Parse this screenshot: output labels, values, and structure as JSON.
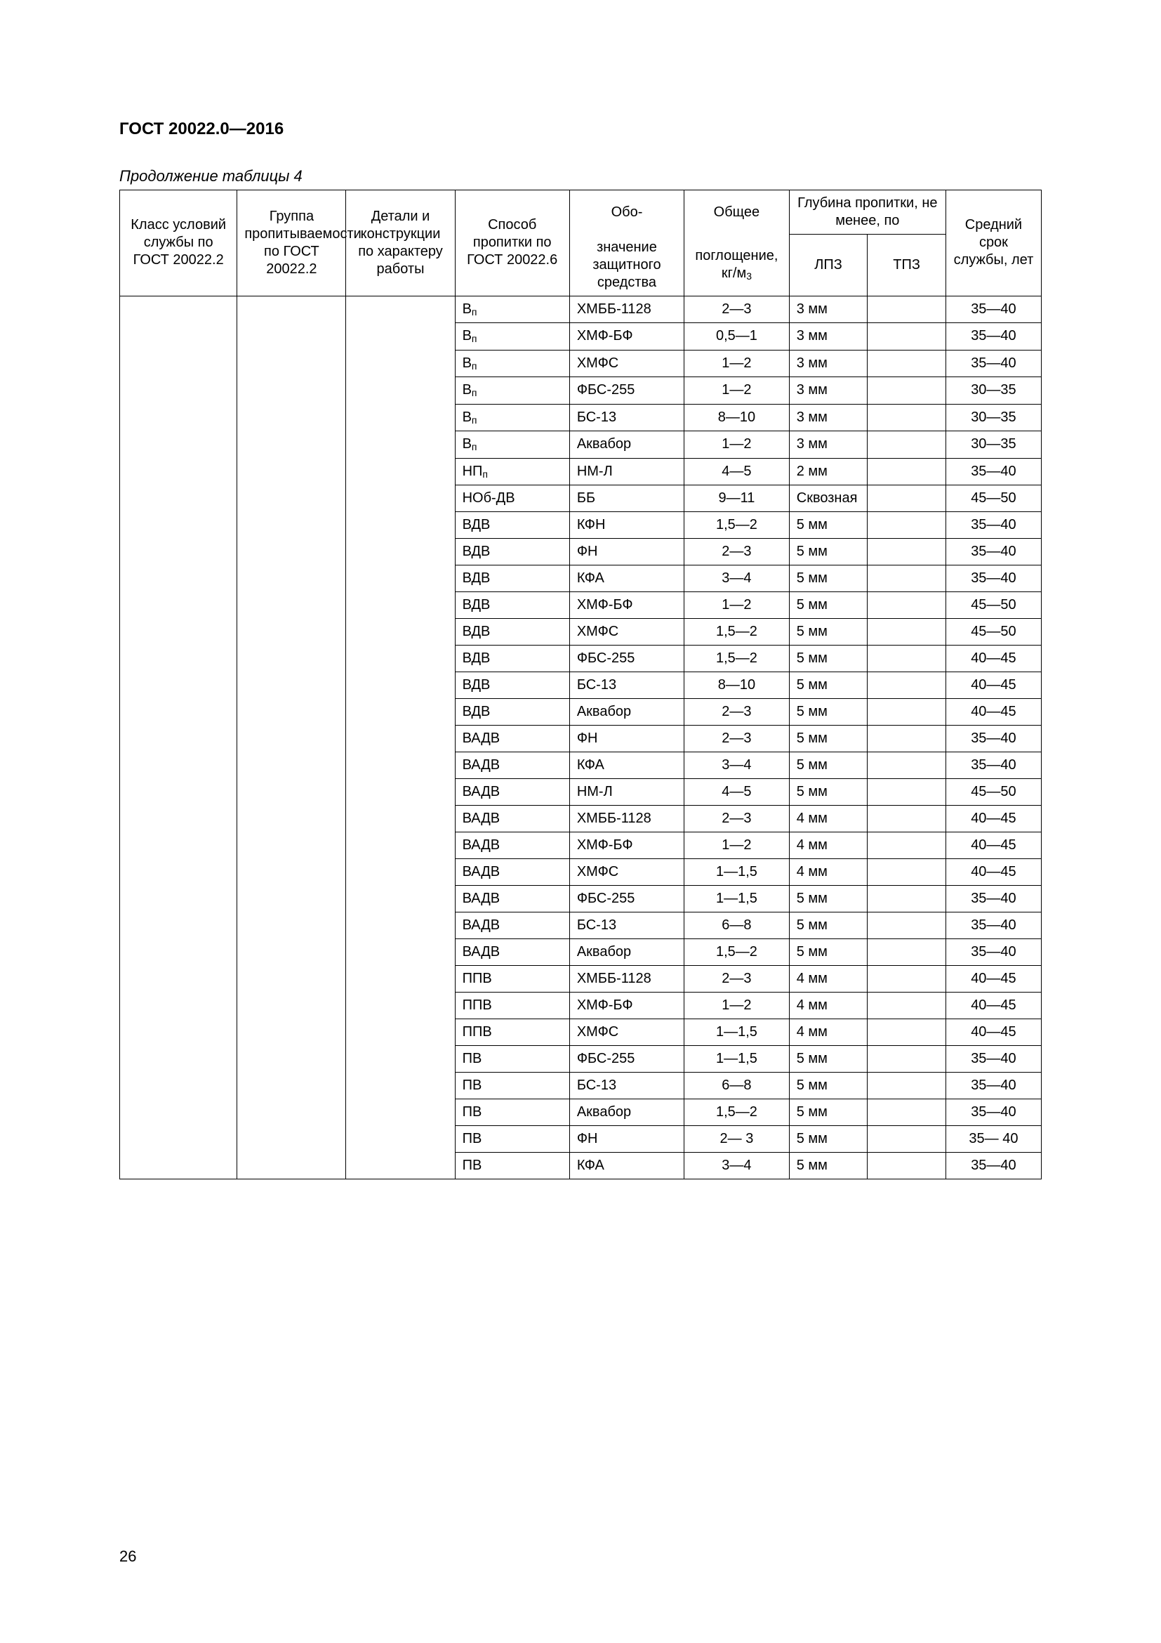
{
  "doc": {
    "title": "ГОСТ 20022.0—2016",
    "page_number": "26"
  },
  "table": {
    "caption": "Продолжение таблицы 4",
    "headers": {
      "c0": "Класс условий службы по ГОСТ 20022.2",
      "c1": "Группа пропитываемости по ГОСТ 20022.2",
      "c2": "Детали и конструкции по характеру работы",
      "c3": "Способ пропитки по ГОСТ 20022.6",
      "c4a": "Обо-",
      "c4b": "значение защитного средства",
      "c5a": "Общее",
      "c5b_html": "поглощение, кг/м<span class='sub'>3</span>",
      "c67": "Глубина пропитки, не менее, по",
      "c6": "ЛПЗ",
      "c7": "ТПЗ",
      "c8": "Средний срок службы, лет"
    },
    "rows": [
      {
        "c3_html": "В<span class='sub'>п</span>",
        "c4": "ХМББ-1128",
        "c5": "2—3",
        "c6": "3 мм",
        "c7": "",
        "c8": "35—40"
      },
      {
        "c3_html": "В<span class='sub'>п</span>",
        "c4": "ХМФ-БФ",
        "c5": "0,5—1",
        "c6": "3 мм",
        "c7": "",
        "c8": "35—40"
      },
      {
        "c3_html": "В<span class='sub'>п</span>",
        "c4": "ХМФС",
        "c5": "1—2",
        "c6": "3 мм",
        "c7": "",
        "c8": "35—40"
      },
      {
        "c3_html": "В<span class='sub'>п</span>",
        "c4": "ФБС-255",
        "c5": "1—2",
        "c6": "3 мм",
        "c7": "",
        "c8": "30—35"
      },
      {
        "c3_html": "В<span class='sub'>п</span>",
        "c4": "БС-13",
        "c5": "8—10",
        "c6": "3 мм",
        "c7": "",
        "c8": "30—35"
      },
      {
        "c3_html": "В<span class='sub'>п</span>",
        "c4": "Аквабор",
        "c5": "1—2",
        "c6": "3 мм",
        "c7": "",
        "c8": "30—35"
      },
      {
        "c3_html": "НП<span class='sub'>п</span>",
        "c4": "НМ-Л",
        "c5": "4—5",
        "c6": "2 мм",
        "c7": "",
        "c8": "35—40"
      },
      {
        "c3": "НОб-ДВ",
        "c4": "ББ",
        "c5": "9—11",
        "c6": "Сквозная",
        "c7": "",
        "c8": "45—50"
      },
      {
        "c3": "ВДВ",
        "c4": "КФН",
        "c5": "1,5—2",
        "c6": "5 мм",
        "c7": "",
        "c8": "35—40"
      },
      {
        "c3": "ВДВ",
        "c4": "ФН",
        "c5": "2—3",
        "c6": "5 мм",
        "c7": "",
        "c8": "35—40"
      },
      {
        "c3": "ВДВ",
        "c4": "КФА",
        "c5": "3—4",
        "c6": "5 мм",
        "c7": "",
        "c8": "35—40"
      },
      {
        "c3": "ВДВ",
        "c4": "ХМФ-БФ",
        "c5": "1—2",
        "c6": "5 мм",
        "c7": "",
        "c8": "45—50"
      },
      {
        "c3": "ВДВ",
        "c4": "ХМФС",
        "c5": "1,5—2",
        "c6": "5 мм",
        "c7": "",
        "c8": "45—50"
      },
      {
        "c3": "ВДВ",
        "c4": "ФБС-255",
        "c5": "1,5—2",
        "c6": "5 мм",
        "c7": "",
        "c8": "40—45"
      },
      {
        "c3": "ВДВ",
        "c4": "БС-13",
        "c5": "8—10",
        "c6": "5 мм",
        "c7": "",
        "c8": "40—45"
      },
      {
        "c3": "ВДВ",
        "c4": "Аквабор",
        "c5": "2—3",
        "c6": "5 мм",
        "c7": "",
        "c8": "40—45"
      },
      {
        "c3": "ВАДВ",
        "c4": "ФН",
        "c5": "2—3",
        "c6": "5 мм",
        "c7": "",
        "c8": "35—40"
      },
      {
        "c3": "ВАДВ",
        "c4": "КФА",
        "c5": "3—4",
        "c6": "5 мм",
        "c7": "",
        "c8": "35—40"
      },
      {
        "c3": "ВАДВ",
        "c4": "НМ-Л",
        "c5": "4—5",
        "c6": "5 мм",
        "c7": "",
        "c8": "45—50"
      },
      {
        "c3": "ВАДВ",
        "c4": "ХМББ-1128",
        "c5": "2—3",
        "c6": "4 мм",
        "c7": "",
        "c8": "40—45"
      },
      {
        "c3": "ВАДВ",
        "c4": "ХМФ-БФ",
        "c5": "1—2",
        "c6": "4 мм",
        "c7": "",
        "c8": "40—45"
      },
      {
        "c3": "ВАДВ",
        "c4": "ХМФС",
        "c5": "1—1,5",
        "c6": "4 мм",
        "c7": "",
        "c8": "40—45"
      },
      {
        "c3": "ВАДВ",
        "c4": "ФБС-255",
        "c5": "1—1,5",
        "c6": "5 мм",
        "c7": "",
        "c8": "35—40"
      },
      {
        "c3": "ВАДВ",
        "c4": "БС-13",
        "c5": "6—8",
        "c6": "5 мм",
        "c7": "",
        "c8": "35—40"
      },
      {
        "c3": "ВАДВ",
        "c4": "Аквабор",
        "c5": "1,5—2",
        "c6": "5 мм",
        "c7": "",
        "c8": "35—40"
      },
      {
        "c3": "ППВ",
        "c4": "ХМББ-1128",
        "c5": "2—3",
        "c6": "4 мм",
        "c7": "",
        "c8": "40—45"
      },
      {
        "c3": "ППВ",
        "c4": "ХМФ-БФ",
        "c5": "1—2",
        "c6": "4 мм",
        "c7": "",
        "c8": "40—45"
      },
      {
        "c3": "ППВ",
        "c4": "ХМФС",
        "c5": "1—1,5",
        "c6": "4 мм",
        "c7": "",
        "c8": "40—45"
      },
      {
        "c3": "ПВ",
        "c4": "ФБС-255",
        "c5": "1—1,5",
        "c6": "5 мм",
        "c7": "",
        "c8": "35—40"
      },
      {
        "c3": "ПВ",
        "c4": "БС-13",
        "c5": "6—8",
        "c6": "5 мм",
        "c7": "",
        "c8": "35—40"
      },
      {
        "c3": "ПВ",
        "c4": "Аквабор",
        "c5": "1,5—2",
        "c6": "5 мм",
        "c7": "",
        "c8": "35—40"
      },
      {
        "c3": "ПВ",
        "c4": "ФН",
        "c5": "2— 3",
        "c6": "5 мм",
        "c7": "",
        "c8": "35— 40"
      },
      {
        "c3": "ПВ",
        "c4": "КФА",
        "c5": "3—4",
        "c6": "5 мм",
        "c7": "",
        "c8": "35—40"
      }
    ]
  }
}
